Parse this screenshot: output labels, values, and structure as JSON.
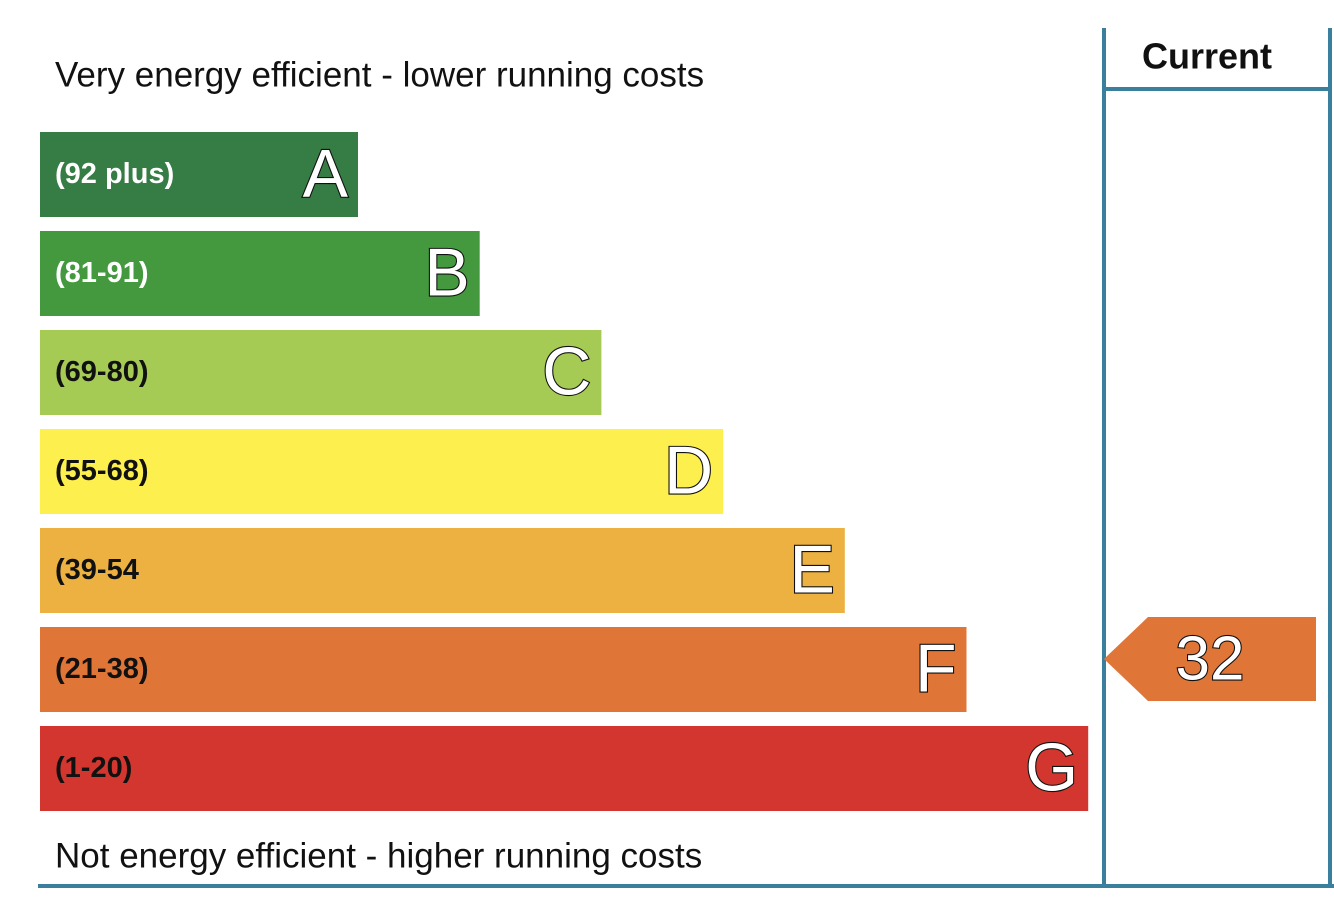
{
  "header": {
    "top_text": "Very energy efficient - lower running costs",
    "bottom_text": "Not energy efficient - higher running costs"
  },
  "bands": [
    {
      "range": "(92 plus)",
      "letter": "A",
      "color": "#357c45",
      "text_color": "#ffffff"
    },
    {
      "range": "(81-91)",
      "letter": "B",
      "color": "#44993f",
      "text_color": "#ffffff"
    },
    {
      "range": "(69-80)",
      "letter": "C",
      "color": "#a6cb55",
      "text_color": "#111111"
    },
    {
      "range": "(55-68)",
      "letter": "D",
      "color": "#fdef4d",
      "text_color": "#111111"
    },
    {
      "range": "(39-54",
      "letter": "E",
      "color": "#ecb141",
      "text_color": "#111111"
    },
    {
      "range": "(21-38)",
      "letter": "F",
      "color": "#e07538",
      "text_color": "#111111"
    },
    {
      "range": "(1-20)",
      "letter": "G",
      "color": "#d3362f",
      "text_color": "#111111"
    }
  ],
  "current": {
    "title": "Current",
    "value": 32,
    "color": "#e07538"
  }
}
